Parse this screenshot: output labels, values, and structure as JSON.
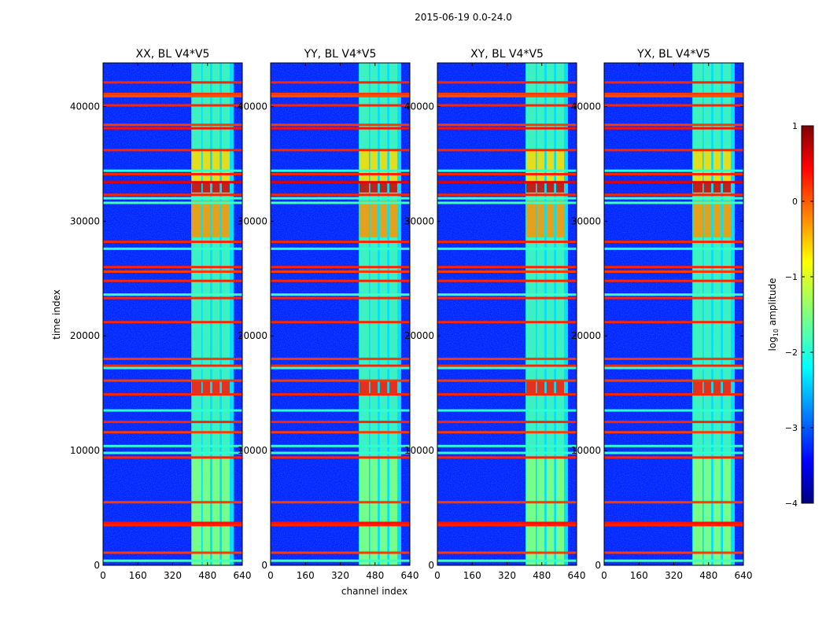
{
  "figure": {
    "suptitle": "2015-06-19 0.0-24.0"
  },
  "chart_data": {
    "type": "heatmap",
    "xlabel": "channel index",
    "ylabel": "time index",
    "xlim": [
      0,
      640
    ],
    "ylim": [
      0,
      43800
    ],
    "xticks": [
      0,
      160,
      320,
      480,
      640
    ],
    "yticks": [
      0,
      10000,
      20000,
      30000,
      40000
    ],
    "panels": [
      {
        "title": "XX, BL V4*V5"
      },
      {
        "title": "YY, BL V4*V5"
      },
      {
        "title": "XY, BL V4*V5"
      },
      {
        "title": "YX, BL V4*V5"
      }
    ],
    "colorbar": {
      "label": "log",
      "label_sub": "10",
      "label_tail": " amplitude",
      "range": [
        -4,
        1
      ],
      "ticks": [
        1,
        0,
        -1,
        -2,
        -3,
        -4
      ],
      "tick_labels": [
        "1",
        "0",
        "−1",
        "−2",
        "−3",
        "−4"
      ],
      "colormap": "jet"
    },
    "rfi_band_channels": [
      405,
      600
    ],
    "rfi_stripe_channels": [
      {
        "start": 408,
        "end": 452,
        "value": -0.6
      },
      {
        "start": 458,
        "end": 492,
        "value": -0.8
      },
      {
        "start": 502,
        "end": 536,
        "value": -0.7
      },
      {
        "start": 546,
        "end": 582,
        "value": -0.8
      }
    ],
    "saturated_blocks_time": [
      {
        "start": 32500,
        "end": 33400,
        "value": 0.6
      },
      {
        "start": 28600,
        "end": 31800,
        "value": -0.35
      },
      {
        "start": 15000,
        "end": 16100,
        "value": 0.3
      },
      {
        "start": 33400,
        "end": 36200,
        "value": -0.7
      },
      {
        "start": 0,
        "end": 9400,
        "value": -1.5
      }
    ],
    "flagged_rows_time": [
      {
        "t": 42100,
        "value": 0.2
      },
      {
        "t": 41100,
        "value": 0.1
      },
      {
        "t": 40900,
        "value": 0.0
      },
      {
        "t": 40100,
        "value": 0.2
      },
      {
        "t": 38400,
        "value": 0.1
      },
      {
        "t": 38100,
        "value": 0.3
      },
      {
        "t": 36200,
        "value": 0.2
      },
      {
        "t": 34400,
        "value": -1.9
      },
      {
        "t": 34100,
        "value": 0.2
      },
      {
        "t": 33400,
        "value": 0.5
      },
      {
        "t": 32300,
        "value": 0.2
      },
      {
        "t": 32000,
        "value": -1.8
      },
      {
        "t": 31600,
        "value": -1.8
      },
      {
        "t": 28200,
        "value": 0.2
      },
      {
        "t": 27600,
        "value": -1.9
      },
      {
        "t": 26000,
        "value": 0.2
      },
      {
        "t": 25600,
        "value": 0.1
      },
      {
        "t": 24800,
        "value": 0.2
      },
      {
        "t": 23600,
        "value": -1.8
      },
      {
        "t": 23300,
        "value": 0.2
      },
      {
        "t": 21200,
        "value": 0.2
      },
      {
        "t": 18000,
        "value": 0.1
      },
      {
        "t": 17400,
        "value": 0.2
      },
      {
        "t": 17200,
        "value": -1.9
      },
      {
        "t": 16100,
        "value": 0.1
      },
      {
        "t": 14900,
        "value": 0.2
      },
      {
        "t": 13500,
        "value": -1.9
      },
      {
        "t": 12500,
        "value": 0.2
      },
      {
        "t": 11600,
        "value": 0.1
      },
      {
        "t": 10400,
        "value": -1.9
      },
      {
        "t": 9800,
        "value": -1.9
      },
      {
        "t": 9400,
        "value": 0.2
      },
      {
        "t": 5500,
        "value": 0.1
      },
      {
        "t": 3700,
        "value": 0.3
      },
      {
        "t": 3500,
        "value": 0.2
      },
      {
        "t": 1100,
        "value": 0.1
      },
      {
        "t": 400,
        "value": -1.8
      }
    ],
    "background_level": -3.2
  }
}
